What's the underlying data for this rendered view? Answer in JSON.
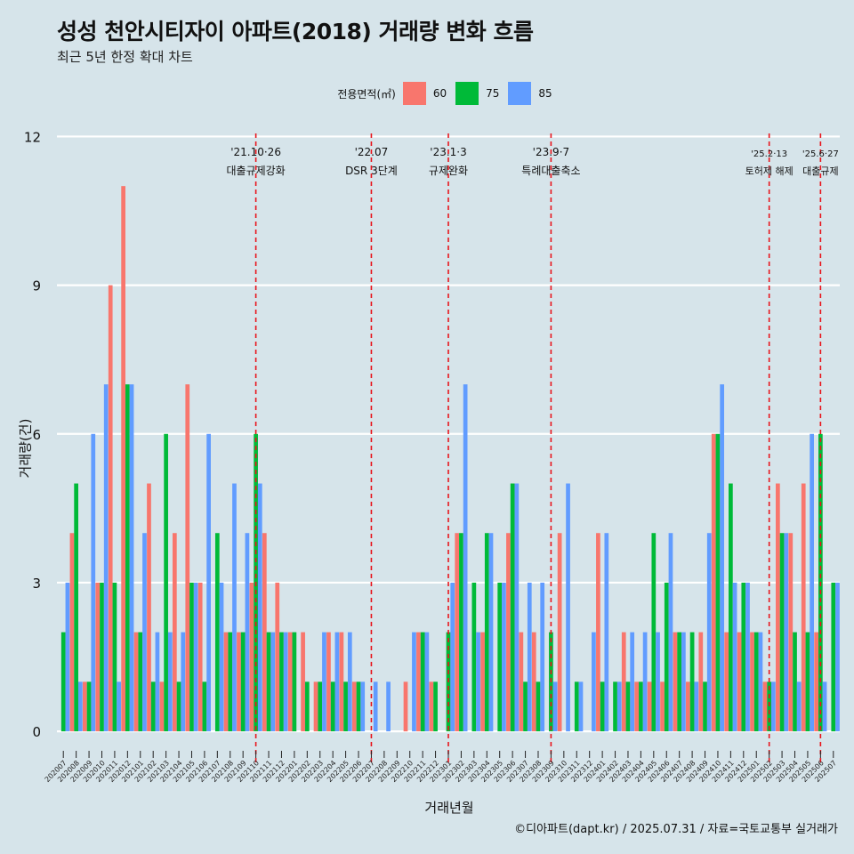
{
  "title": "성성 천안시티자이 아파트(2018) 거래량 변화 흐름",
  "subtitle": "최근 5년 한정 확대 차트",
  "caption": "©디아파트(dapt.kr) / 2025.07.31 / 자료=국토교통부 실거래가",
  "colors": {
    "background": "#d6e4ea",
    "s60": "#f8766d",
    "s75": "#00ba38",
    "s85": "#619cff",
    "event_line": "#e8141b",
    "grid": "#ffffff"
  },
  "chart_data": {
    "type": "bar",
    "xlabel": "거래년월",
    "ylabel": "거래량(건)",
    "ylim": [
      -0.5,
      12.6
    ],
    "yticks": [
      0,
      3,
      6,
      9,
      12
    ],
    "grid": true,
    "legend": {
      "title": "전용면적(㎡)",
      "position": "top"
    },
    "months": [
      "202007",
      "202008",
      "202009",
      "202010",
      "202011",
      "202012",
      "202101",
      "202102",
      "202103",
      "202104",
      "202105",
      "202106",
      "202107",
      "202108",
      "202109",
      "202110",
      "202111",
      "202112",
      "202201",
      "202202",
      "202203",
      "202204",
      "202205",
      "202206",
      "202207",
      "202208",
      "202209",
      "202210",
      "202211",
      "202212",
      "202301",
      "202302",
      "202303",
      "202304",
      "202305",
      "202306",
      "202307",
      "202308",
      "202309",
      "202310",
      "202311",
      "202312",
      "202401",
      "202402",
      "202403",
      "202404",
      "202405",
      "202406",
      "202407",
      "202408",
      "202409",
      "202410",
      "202411",
      "202412",
      "202501",
      "202502",
      "202503",
      "202504",
      "202505",
      "202506",
      "202507"
    ],
    "series": [
      {
        "name": "60",
        "color": "#f8766d",
        "values": [
          0,
          4,
          1,
          3,
          9,
          11,
          2,
          5,
          1,
          4,
          7,
          3,
          0,
          2,
          2,
          3,
          4,
          3,
          2,
          2,
          1,
          2,
          2,
          1,
          0,
          0,
          0,
          1,
          2,
          1,
          0,
          4,
          0,
          2,
          0,
          4,
          2,
          2,
          0,
          4,
          0,
          0,
          4,
          0,
          2,
          1,
          1,
          1,
          2,
          1,
          2,
          6,
          2,
          2,
          2,
          1,
          5,
          4,
          5,
          2,
          0
        ]
      },
      {
        "name": "75",
        "color": "#00ba38",
        "values": [
          2,
          5,
          1,
          3,
          3,
          7,
          2,
          1,
          6,
          1,
          3,
          1,
          4,
          2,
          2,
          6,
          2,
          2,
          2,
          1,
          1,
          1,
          1,
          1,
          0,
          0,
          0,
          0,
          2,
          1,
          2,
          4,
          3,
          4,
          3,
          5,
          1,
          1,
          2,
          0,
          1,
          0,
          1,
          1,
          1,
          1,
          4,
          3,
          2,
          2,
          1,
          6,
          5,
          3,
          2,
          1,
          4,
          2,
          2,
          6,
          3
        ]
      },
      {
        "name": "85",
        "color": "#619cff",
        "values": [
          3,
          1,
          6,
          7,
          1,
          7,
          4,
          2,
          2,
          2,
          3,
          6,
          3,
          5,
          4,
          5,
          2,
          2,
          0,
          0,
          2,
          2,
          2,
          1,
          1,
          1,
          0,
          2,
          2,
          0,
          3,
          7,
          2,
          4,
          3,
          5,
          3,
          3,
          1,
          5,
          1,
          2,
          4,
          1,
          2,
          2,
          2,
          4,
          2,
          1,
          4,
          7,
          3,
          3,
          2,
          1,
          4,
          1,
          6,
          1,
          3
        ]
      }
    ],
    "events": [
      {
        "month": "202110",
        "label1": "'21.10·26",
        "label2": "대출규제강화"
      },
      {
        "month": "202207",
        "label1": "'22.07",
        "label2": "DSR 3단계"
      },
      {
        "month": "202301",
        "label1": "'23.1·3",
        "label2": "규제완화"
      },
      {
        "month": "202309",
        "label1": "'23.9·7",
        "label2": "특례대출축소"
      },
      {
        "month": "202502",
        "label1": "'25.2·13",
        "label2": "토허제 해제"
      },
      {
        "month": "202506",
        "label1": "'25.6·27",
        "label2": "대출규제"
      }
    ]
  }
}
